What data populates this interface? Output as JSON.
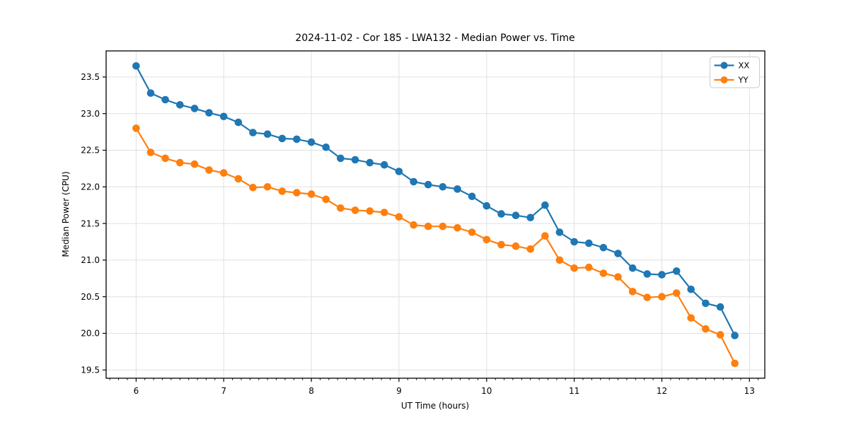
{
  "chart_data": {
    "type": "line",
    "title": "2024-11-02 - Cor 185 - LWA132 - Median Power vs. Time",
    "xlabel": "UT Time (hours)",
    "ylabel": "Median Power (CPU)",
    "xlim": [
      5.658,
      13.175
    ],
    "ylim": [
      19.387,
      23.856
    ],
    "xticks": [
      6,
      7,
      8,
      9,
      10,
      11,
      12,
      13
    ],
    "yticks": [
      19.5,
      20.0,
      20.5,
      21.0,
      21.5,
      22.0,
      22.5,
      23.0,
      23.5
    ],
    "x_minor_step": 0.1,
    "grid": true,
    "legend_position": "upper right",
    "x": [
      6.0,
      6.167,
      6.333,
      6.5,
      6.667,
      6.833,
      7.0,
      7.167,
      7.333,
      7.5,
      7.667,
      7.833,
      8.0,
      8.167,
      8.333,
      8.5,
      8.667,
      8.833,
      9.0,
      9.167,
      9.333,
      9.5,
      9.667,
      9.833,
      10.0,
      10.167,
      10.333,
      10.5,
      10.667,
      10.833,
      11.0,
      11.167,
      11.333,
      11.5,
      11.667,
      11.833,
      12.0,
      12.167,
      12.333,
      12.5,
      12.667,
      12.833
    ],
    "series": [
      {
        "name": "XX",
        "color": "#1f77b4",
        "values": [
          23.65,
          23.28,
          23.19,
          23.12,
          23.07,
          23.01,
          22.96,
          22.88,
          22.74,
          22.72,
          22.66,
          22.65,
          22.61,
          22.54,
          22.39,
          22.37,
          22.33,
          22.3,
          22.21,
          22.07,
          22.03,
          22.0,
          21.97,
          21.87,
          21.74,
          21.63,
          21.61,
          21.58,
          21.75,
          21.38,
          21.25,
          21.23,
          21.17,
          21.09,
          20.89,
          20.81,
          20.8,
          20.85,
          20.6,
          20.41,
          20.36,
          19.97
        ]
      },
      {
        "name": "YY",
        "color": "#ff7f0e",
        "values": [
          22.8,
          22.47,
          22.39,
          22.33,
          22.31,
          22.23,
          22.19,
          22.11,
          21.99,
          22.0,
          21.94,
          21.92,
          21.9,
          21.83,
          21.71,
          21.68,
          21.67,
          21.65,
          21.59,
          21.48,
          21.46,
          21.46,
          21.44,
          21.38,
          21.28,
          21.21,
          21.19,
          21.15,
          21.33,
          21.0,
          20.89,
          20.9,
          20.82,
          20.77,
          20.57,
          20.49,
          20.5,
          20.55,
          20.21,
          20.06,
          19.98,
          19.59
        ]
      }
    ],
    "style": {
      "grid_color": "#e0e0e0",
      "spine_color": "#000000",
      "background": "#ffffff",
      "marker": "o",
      "linestyle": "-"
    }
  }
}
